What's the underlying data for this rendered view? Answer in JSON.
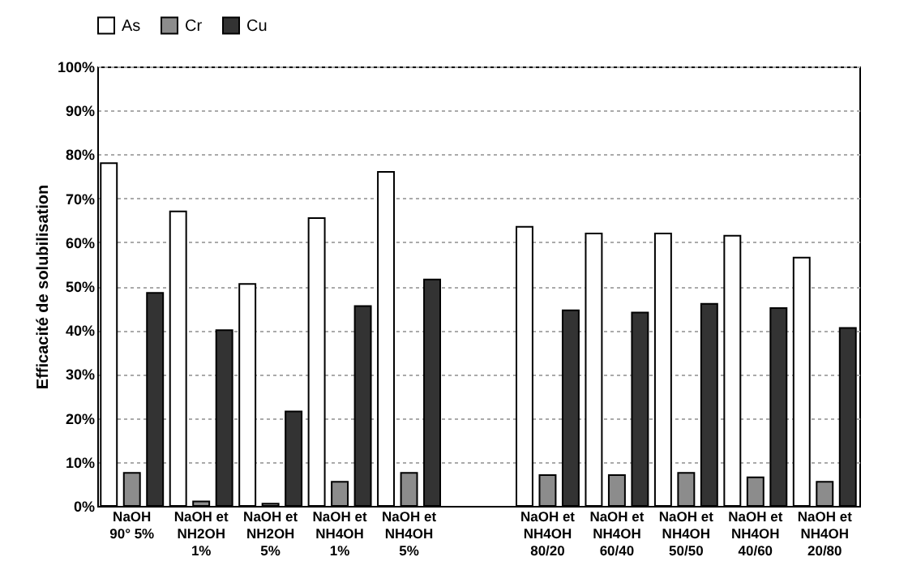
{
  "chart_data": {
    "type": "bar",
    "ylabel": "Efficacité de solubilisation",
    "categories": [
      "NaOH\n90° 5%",
      "NaOH et\nNH2OH\n1%",
      "NaOH et\nNH2OH\n5%",
      "NaOH et\nNH4OH\n1%",
      "NaOH et\nNH4OH\n5%",
      null,
      "NaOH et\nNH4OH\n80/20",
      "NaOH et\nNH4OH\n60/40",
      "NaOH et\nNH4OH\n50/50",
      "NaOH et\nNH4OH\n40/60",
      "NaOH et\nNH4OH\n20/80"
    ],
    "series": [
      {
        "name": "As",
        "color": "#ffffff",
        "values": [
          78,
          67,
          50.5,
          65.5,
          76,
          null,
          63.5,
          62,
          62,
          61.5,
          56.5
        ]
      },
      {
        "name": "Cr",
        "color": "#8c8c8c",
        "values": [
          7.5,
          1,
          0.5,
          5.5,
          7.5,
          null,
          7,
          7,
          7.5,
          6.5,
          5.5
        ]
      },
      {
        "name": "Cu",
        "color": "#333333",
        "values": [
          48.5,
          40,
          21.5,
          45.5,
          51.5,
          null,
          44.5,
          44,
          46,
          45,
          40.5
        ]
      }
    ],
    "ylim": [
      0,
      100
    ],
    "yticks": [
      {
        "value": 0,
        "label": "0%"
      },
      {
        "value": 10,
        "label": "10%"
      },
      {
        "value": 20,
        "label": "20%"
      },
      {
        "value": 30,
        "label": "30%"
      },
      {
        "value": 40,
        "label": "40%"
      },
      {
        "value": 50,
        "label": "50%"
      },
      {
        "value": 60,
        "label": "60%"
      },
      {
        "value": 70,
        "label": "70%"
      },
      {
        "value": 80,
        "label": "80%"
      },
      {
        "value": 90,
        "label": "90%"
      },
      {
        "value": 100,
        "label": "100%"
      }
    ],
    "grid": "y",
    "legend": "top"
  }
}
